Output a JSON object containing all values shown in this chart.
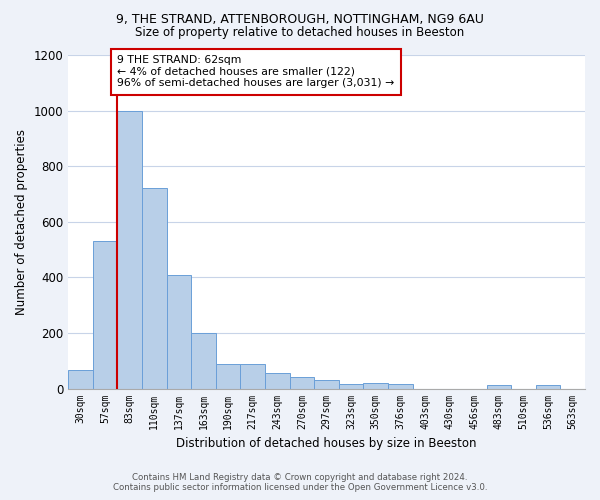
{
  "title_line1": "9, THE STRAND, ATTENBOROUGH, NOTTINGHAM, NG9 6AU",
  "title_line2": "Size of property relative to detached houses in Beeston",
  "xlabel": "Distribution of detached houses by size in Beeston",
  "ylabel": "Number of detached properties",
  "categories": [
    "30sqm",
    "57sqm",
    "83sqm",
    "110sqm",
    "137sqm",
    "163sqm",
    "190sqm",
    "217sqm",
    "243sqm",
    "270sqm",
    "297sqm",
    "323sqm",
    "350sqm",
    "376sqm",
    "403sqm",
    "430sqm",
    "456sqm",
    "483sqm",
    "510sqm",
    "536sqm",
    "563sqm"
  ],
  "values": [
    65,
    530,
    1000,
    720,
    410,
    200,
    90,
    90,
    57,
    40,
    30,
    17,
    20,
    17,
    0,
    0,
    0,
    12,
    0,
    12,
    0
  ],
  "bar_color": "#b8cfe8",
  "bar_edge_color": "#6a9fd8",
  "bar_width": 1.0,
  "vline_x": 1.5,
  "vline_color": "#cc0000",
  "annotation_text": "9 THE STRAND: 62sqm\n← 4% of detached houses are smaller (122)\n96% of semi-detached houses are larger (3,031) →",
  "annotation_box_color": "#ffffff",
  "annotation_box_edge": "#cc0000",
  "ylim": [
    0,
    1200
  ],
  "yticks": [
    0,
    200,
    400,
    600,
    800,
    1000,
    1200
  ],
  "footer_line1": "Contains HM Land Registry data © Crown copyright and database right 2024.",
  "footer_line2": "Contains public sector information licensed under the Open Government Licence v3.0.",
  "bg_color": "#eef2f9",
  "plot_bg_color": "#ffffff",
  "grid_color": "#c8d4e8"
}
